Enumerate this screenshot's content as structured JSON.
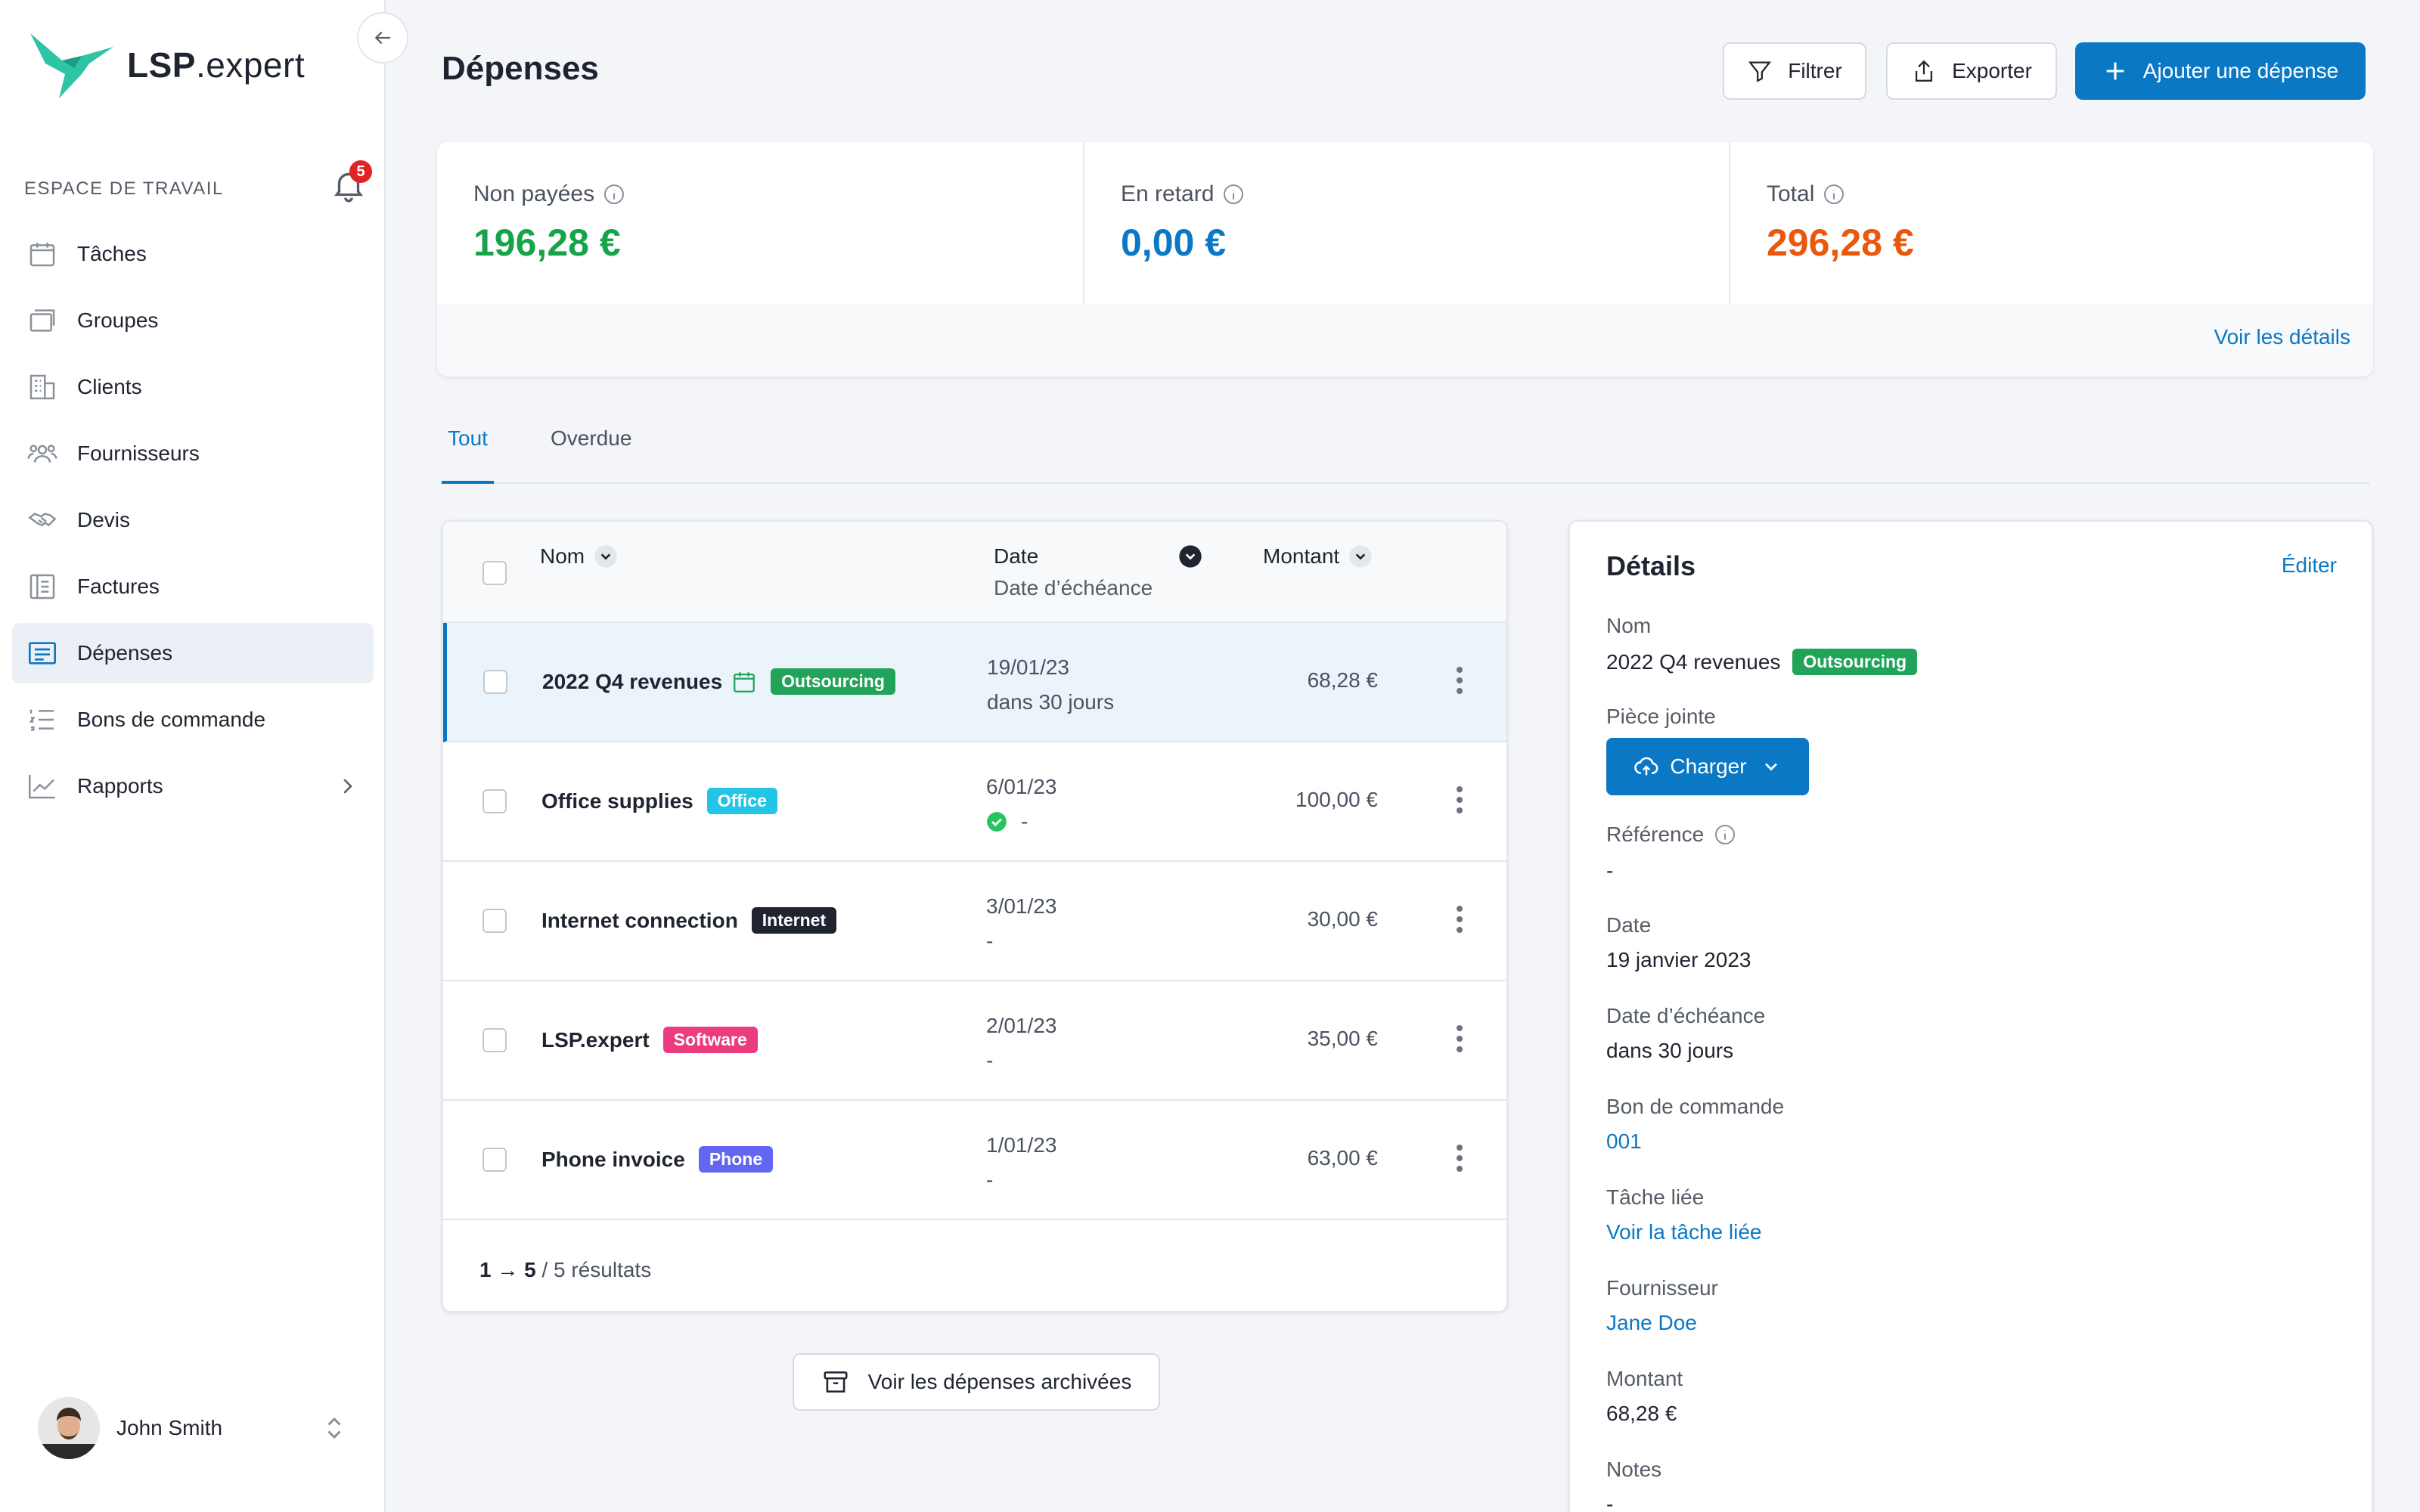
{
  "app": {
    "brand_bold": "LSP",
    "brand_rest": ".expert"
  },
  "sidebar": {
    "workspace_label": "ESPACE DE TRAVAIL",
    "notification_count": "5",
    "items": [
      {
        "label": "Tâches",
        "icon": "calendar-icon"
      },
      {
        "label": "Groupes",
        "icon": "folders-icon"
      },
      {
        "label": "Clients",
        "icon": "building-icon"
      },
      {
        "label": "Fournisseurs",
        "icon": "users-icon"
      },
      {
        "label": "Devis",
        "icon": "handshake-icon"
      },
      {
        "label": "Factures",
        "icon": "invoice-icon"
      },
      {
        "label": "Dépenses",
        "icon": "expenses-icon",
        "active": true
      },
      {
        "label": "Bons de commande",
        "icon": "list-icon"
      },
      {
        "label": "Rapports",
        "icon": "chart-icon"
      }
    ],
    "user": {
      "name": "John Smith"
    }
  },
  "header": {
    "title": "Dépenses",
    "filter_label": "Filtrer",
    "export_label": "Exporter",
    "add_label": "Ajouter une dépense"
  },
  "summary": {
    "unpaid": {
      "label": "Non payées",
      "value": "196,28 €",
      "color": "#16a34a"
    },
    "overdue": {
      "label": "En retard",
      "value": "0,00 €",
      "color": "#0a78c5"
    },
    "total": {
      "label": "Total",
      "value": "296,28 €",
      "color": "#ea580c"
    },
    "details_link": "Voir les détails"
  },
  "tabs": [
    {
      "label": "Tout",
      "active": true
    },
    {
      "label": "Overdue",
      "active": false
    }
  ],
  "table": {
    "col_name": "Nom",
    "col_date": "Date",
    "col_due": "Date d’échéance",
    "col_amount": "Montant",
    "rows": [
      {
        "name": "2022 Q4 revenues",
        "tag": "Outsourcing",
        "tag_color": "#22a35a",
        "date": "19/01/23",
        "due": "dans 30 jours",
        "amount": "68,28 €"
      },
      {
        "name": "Office supplies",
        "tag": "Office",
        "tag_color": "#22c5e6",
        "date": "6/01/23",
        "due": "-",
        "amount": "100,00 €"
      },
      {
        "name": "Internet connection",
        "tag": "Internet",
        "tag_color": "#1f2430",
        "date": "3/01/23",
        "due": "-",
        "amount": "30,00 €"
      },
      {
        "name": "LSP.expert",
        "tag": "Software",
        "tag_color": "#ec3b7e",
        "date": "2/01/23",
        "due": "-",
        "amount": "35,00 €"
      },
      {
        "name": "Phone invoice",
        "tag": "Phone",
        "tag_color": "#6366f1",
        "date": "1/01/23",
        "due": "-",
        "amount": "63,00 €"
      }
    ],
    "pager_range": "1 → 5",
    "pager_total": "/ 5 résultats"
  },
  "archive_button": "Voir les dépenses archivées",
  "details": {
    "title": "Détails",
    "edit": "Éditer",
    "name_label": "Nom",
    "name_value": "2022 Q4 revenues",
    "name_tag": "Outsourcing",
    "attachment_label": "Pièce jointe",
    "upload_label": "Charger",
    "reference_label": "Référence",
    "reference_value": "-",
    "date_label": "Date",
    "date_value": "19 janvier 2023",
    "due_label": "Date d’échéance",
    "due_value": "dans 30 jours",
    "po_label": "Bon de commande",
    "po_value": "001",
    "task_label": "Tâche liée",
    "task_value": "Voir la tâche liée",
    "supplier_label": "Fournisseur",
    "supplier_value": "Jane Doe",
    "amount_label": "Montant",
    "amount_value": "68,28 €",
    "notes_label": "Notes",
    "notes_value": "-"
  }
}
